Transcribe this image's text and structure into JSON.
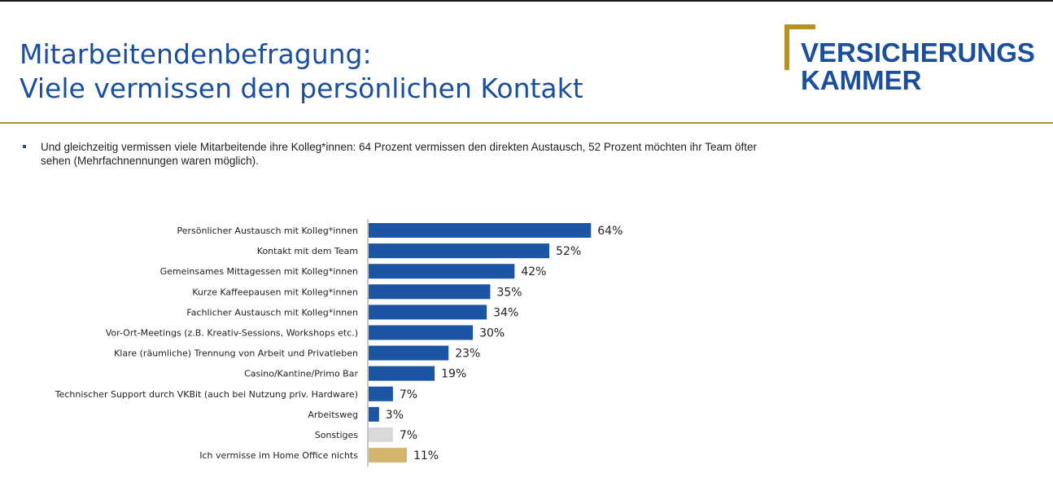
{
  "header": {
    "title_line1": "Mitarbeitendenbefragung:",
    "title_line2": "Viele vermissen den persönlichen Kontakt",
    "logo_line1": "VERSICHERUNGS",
    "logo_line2": "KAMMER"
  },
  "bullet_text": "Und gleichzeitig vermissen viele Mitarbeitende ihre Kolleg*innen: 64 Prozent vermissen den direkten Austausch, 52 Prozent möchten ihr Team öfter sehen (Mehrfachnennungen waren möglich).",
  "colors": {
    "brand_blue": "#1b4f9c",
    "accent_gold": "#b8911f",
    "bar_blue": "#1b55a3",
    "bar_grey": "#d9d9d9",
    "bar_gold": "#d4b46a"
  },
  "chart_data": {
    "type": "bar",
    "orientation": "horizontal",
    "categories": [
      "Persönlicher Austausch mit Kolleg*innen",
      "Kontakt mit dem Team",
      "Gemeinsames Mittagessen mit Kolleg*innen",
      "Kurze Kaffeepausen mit Kolleg*innen",
      "Fachlicher Austausch mit Kolleg*innen",
      "Vor-Ort-Meetings (z.B. Kreativ-Sessions, Workshops etc.)",
      "Klare (räumliche) Trennung von Arbeit und Privatleben",
      "Casino/Kantine/Primo Bar",
      "Technischer Support durch VKBit (auch bei Nutzung priv. Hardware)",
      "Arbeitsweg",
      "Sonstiges",
      "Ich vermisse im Home Office nichts"
    ],
    "values": [
      64,
      52,
      42,
      35,
      34,
      30,
      23,
      19,
      7,
      3,
      7,
      11
    ],
    "labels": [
      "64%",
      "52%",
      "42%",
      "35%",
      "34%",
      "30%",
      "23%",
      "19%",
      "7%",
      "3%",
      "7%",
      "11%"
    ],
    "bar_colors": [
      "#1b55a3",
      "#1b55a3",
      "#1b55a3",
      "#1b55a3",
      "#1b55a3",
      "#1b55a3",
      "#1b55a3",
      "#1b55a3",
      "#1b55a3",
      "#1b55a3",
      "#d9d9d9",
      "#d4b46a"
    ],
    "unit": "%",
    "xlim": [
      0,
      100
    ],
    "grid": false,
    "legend": "none"
  }
}
